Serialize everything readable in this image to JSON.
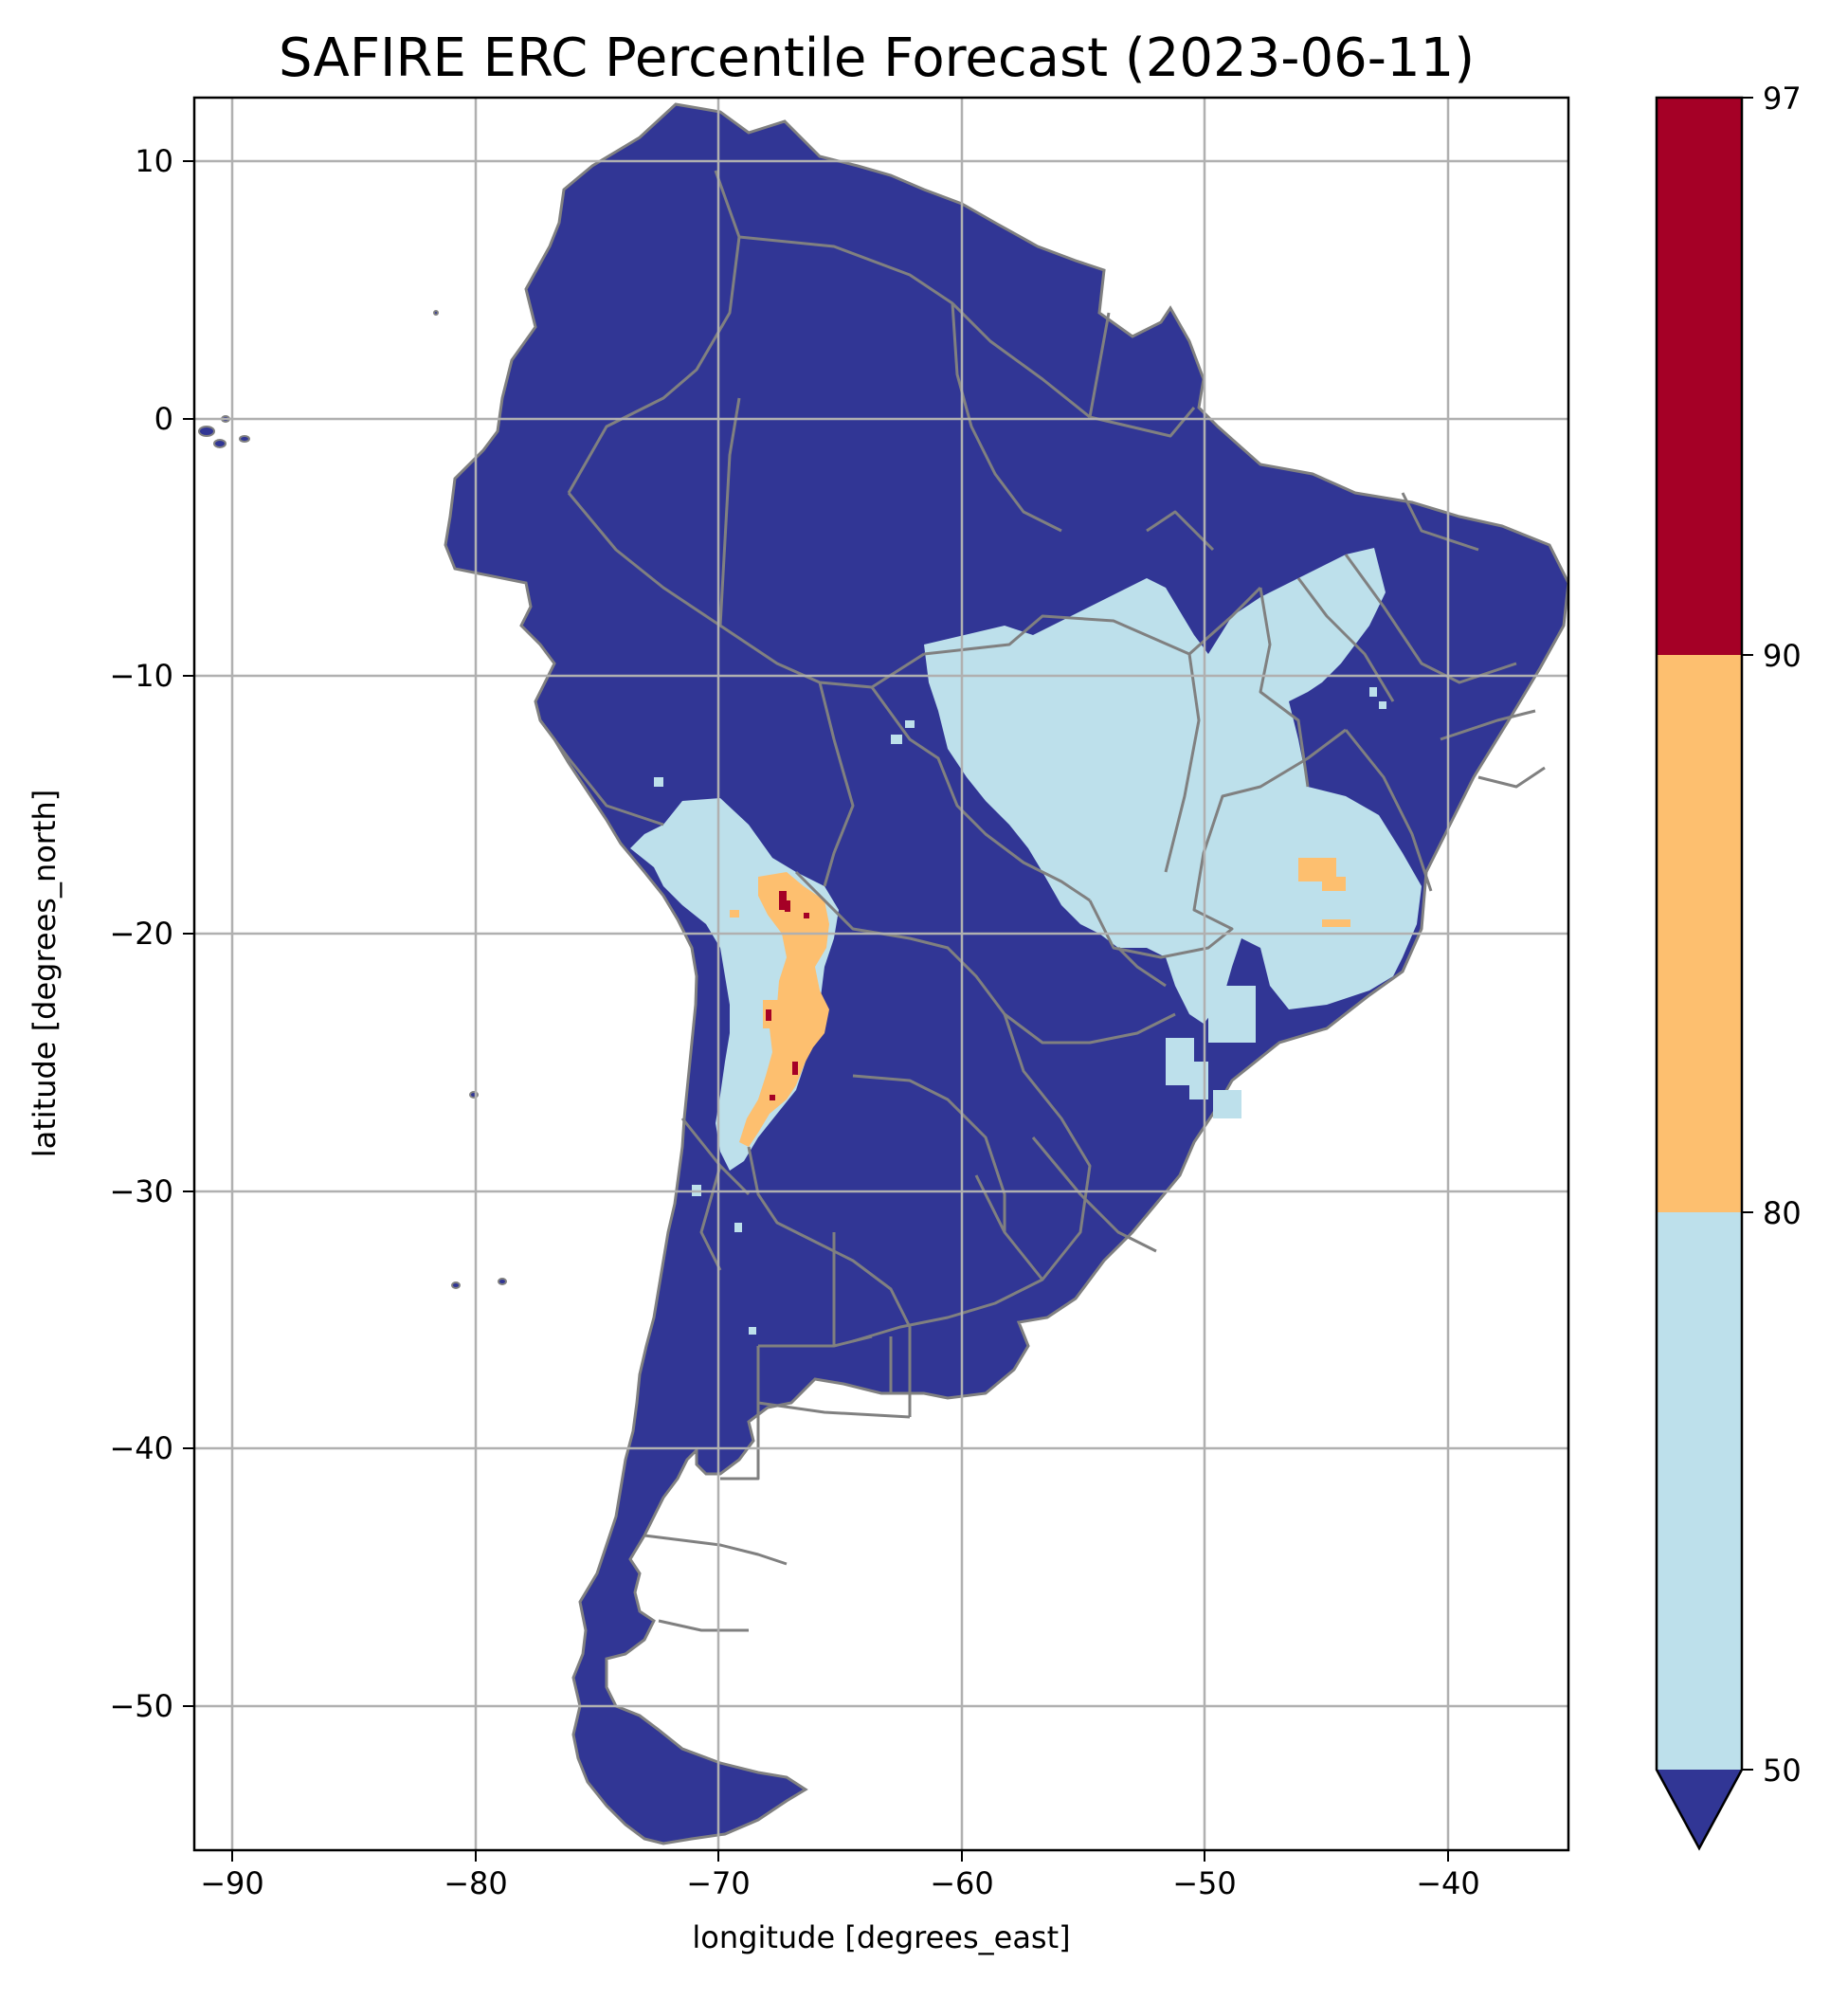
{
  "title": "SAFIRE ERC Percentile Forecast (2023-06-11)",
  "map": {
    "xlabel": "longitude [degrees_east]",
    "ylabel": "latitude [degrees_north]",
    "xlim": [
      -91.5,
      -35
    ],
    "ylim": [
      -55.8,
      12.3
    ],
    "xticks": [
      -90,
      -80,
      -70,
      -60,
      -50,
      -40
    ],
    "yticks": [
      10,
      0,
      -10,
      -20,
      -30,
      -40,
      -50
    ],
    "grid": true,
    "region": "South America"
  },
  "colorbar": {
    "boundaries": [
      50,
      80,
      90,
      97
    ],
    "tick_labels": [
      "50",
      "80",
      "90",
      "97"
    ],
    "colors": [
      "#bde0eb",
      "#fdbf6f",
      "#a50026"
    ],
    "under_color": "#313695",
    "extend": "min"
  },
  "colors": {
    "land_base": "#313695",
    "light_blue": "#bde0eb",
    "orange": "#fdbf6f",
    "dark_red": "#a50026",
    "borders": "#808080",
    "grid": "#b0b0b0"
  }
}
